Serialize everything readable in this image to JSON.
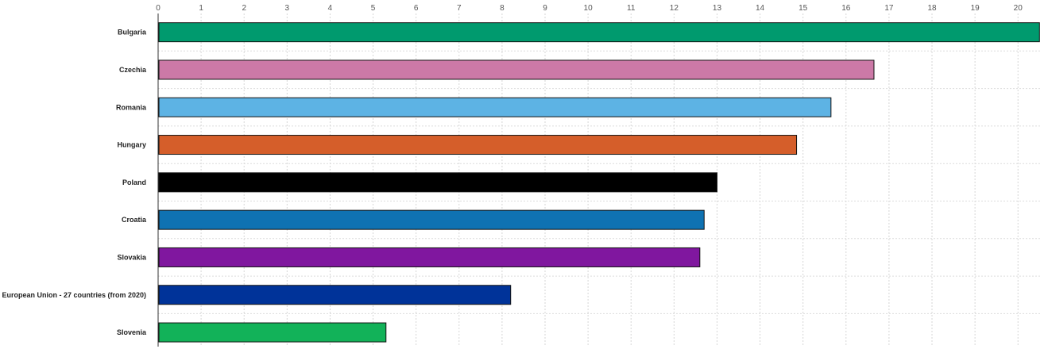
{
  "chart_data": {
    "type": "bar",
    "orientation": "horizontal",
    "title": "",
    "xlabel": "",
    "ylabel": "",
    "xlim": [
      0,
      20.55
    ],
    "x_ticks": [
      0,
      1,
      2,
      3,
      4,
      5,
      6,
      7,
      8,
      9,
      10,
      11,
      12,
      13,
      14,
      15,
      16,
      17,
      18,
      19,
      20
    ],
    "x_tick_position": "top",
    "grid": true,
    "legend": "none",
    "categories": [
      "Bulgaria",
      "Czechia",
      "Romania",
      "Hungary",
      "Poland",
      "Croatia",
      "Slovakia",
      "European Union - 27 countries (from 2020)",
      "Slovenia"
    ],
    "values": [
      20.5,
      16.65,
      15.65,
      14.85,
      13.0,
      12.7,
      12.6,
      8.2,
      5.3
    ],
    "colors": [
      "#009A6E",
      "#CC79A7",
      "#5DB3E4",
      "#D55E2A",
      "#000000",
      "#0F72B2",
      "#80179F",
      "#003399",
      "#12B259"
    ]
  }
}
